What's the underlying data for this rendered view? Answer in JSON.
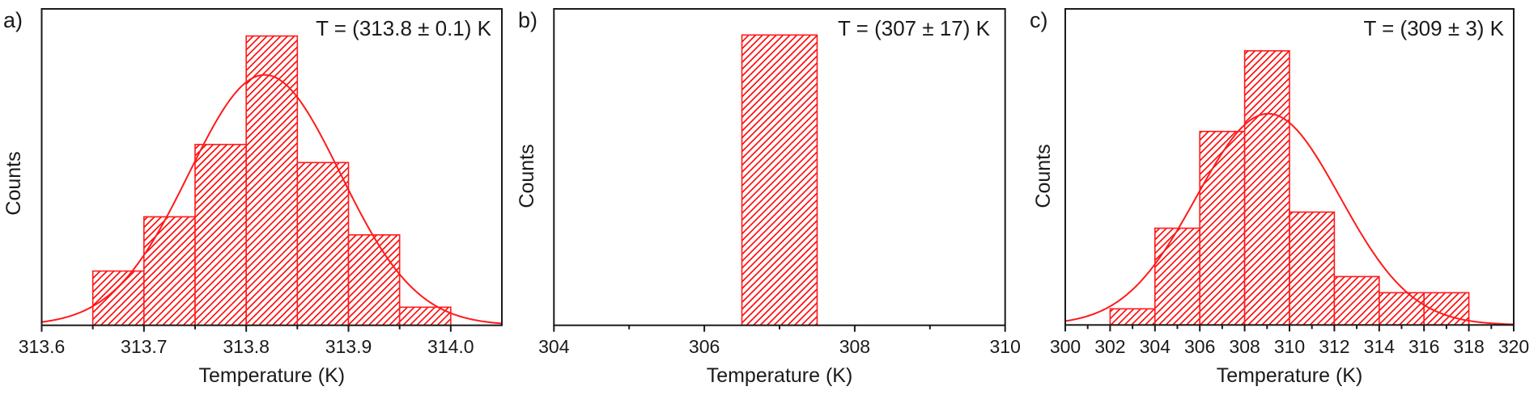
{
  "figure": {
    "bar_color": "#ff1a1a",
    "hatch_color": "#ff0000",
    "fit_color": "#ff1a1a",
    "axis_color": "#1a1a1a"
  },
  "chart_data": [
    {
      "type": "bar",
      "panel_label": "a)",
      "title": "",
      "annotation": "T = (313.8 ± 0.1) K",
      "xlabel": "Temperature (K)",
      "ylabel": "Counts",
      "xlim": [
        313.6,
        314.05
      ],
      "xticks": [
        313.6,
        313.7,
        313.8,
        313.9,
        314.0
      ],
      "xtick_labels": [
        "313.6",
        "313.7",
        "313.8",
        "313.9",
        "314.0"
      ],
      "minor_xticks": [
        313.65,
        313.75,
        313.85,
        313.95
      ],
      "bin_width": 0.05,
      "bin_edges": [
        313.65,
        313.7,
        313.75,
        313.8,
        313.85,
        313.9,
        313.95,
        314.0
      ],
      "categories": [
        "313.65–313.70",
        "313.70–313.75",
        "313.75–313.80",
        "313.80–313.85",
        "313.85–313.90",
        "313.90–313.95",
        "313.95–314.00"
      ],
      "values": [
        3,
        6,
        10,
        16,
        9,
        5,
        1
      ],
      "ylim": [
        0,
        17.5
      ],
      "y_ticks_shown": false,
      "fit": {
        "type": "gaussian",
        "mean": 313.818,
        "sigma": 0.074,
        "peak": 13.85
      },
      "grid": false,
      "legend": null
    },
    {
      "type": "bar",
      "panel_label": "b)",
      "title": "",
      "annotation": "T = (307 ± 17) K",
      "xlabel": "Temperature (K)",
      "ylabel": "Counts",
      "xlim": [
        304,
        310
      ],
      "xticks": [
        304,
        306,
        308,
        310
      ],
      "xtick_labels": [
        "304",
        "306",
        "308",
        "310"
      ],
      "minor_xticks": [
        305,
        307,
        309
      ],
      "bin_width": 1,
      "bin_edges": [
        306.5,
        307.5
      ],
      "categories": [
        "306.5–307.5"
      ],
      "values": [
        1
      ],
      "ylim": [
        0,
        1.09
      ],
      "y_ticks_shown": false,
      "fit": null,
      "grid": false,
      "legend": null
    },
    {
      "type": "bar",
      "panel_label": "c)",
      "title": "",
      "annotation": "T = (309 ± 3) K",
      "xlabel": "Temperature (K)",
      "ylabel": "Counts",
      "xlim": [
        300,
        320
      ],
      "xticks": [
        300,
        302,
        304,
        306,
        308,
        310,
        312,
        314,
        316,
        318,
        320
      ],
      "xtick_labels": [
        "300",
        "302",
        "304",
        "306",
        "308",
        "310",
        "312",
        "314",
        "316",
        "318",
        "320"
      ],
      "minor_xticks": [
        301,
        303,
        305,
        307,
        309,
        311,
        313,
        315,
        317,
        319
      ],
      "bin_width": 2,
      "bin_edges": [
        302,
        304,
        306,
        308,
        310,
        312,
        314,
        316,
        318
      ],
      "categories": [
        "302–304",
        "304–306",
        "306–308",
        "308–310",
        "310–312",
        "312–314",
        "314–316",
        "316–318"
      ],
      "values": [
        1,
        6,
        12,
        17,
        7,
        3,
        2,
        2
      ],
      "ylim": [
        0,
        19.6
      ],
      "y_ticks_shown": false,
      "fit": {
        "type": "gaussian",
        "mean": 309.05,
        "sigma": 3.2,
        "peak": 13.1
      },
      "grid": false,
      "legend": null
    }
  ]
}
